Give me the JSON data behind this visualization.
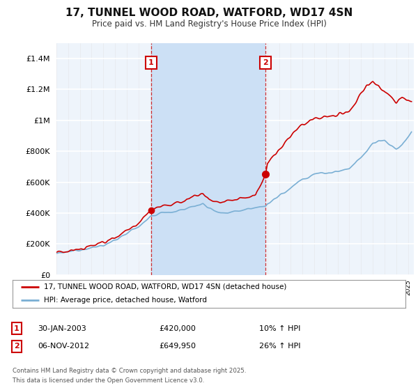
{
  "title": "17, TUNNEL WOOD ROAD, WATFORD, WD17 4SN",
  "subtitle": "Price paid vs. HM Land Registry's House Price Index (HPI)",
  "legend_line1": "17, TUNNEL WOOD ROAD, WATFORD, WD17 4SN (detached house)",
  "legend_line2": "HPI: Average price, detached house, Watford",
  "footnote_line1": "Contains HM Land Registry data © Crown copyright and database right 2025.",
  "footnote_line2": "This data is licensed under the Open Government Licence v3.0.",
  "annotation1_date": "30-JAN-2003",
  "annotation1_price": "£420,000",
  "annotation1_hpi": "10% ↑ HPI",
  "annotation2_date": "06-NOV-2012",
  "annotation2_price": "£649,950",
  "annotation2_hpi": "26% ↑ HPI",
  "marker1_year": 2003.08,
  "marker1_value": 420000,
  "marker2_year": 2012.85,
  "marker2_value": 649950,
  "red_color": "#cc0000",
  "blue_color": "#7aafd4",
  "bg_plot_color": "#eef4fb",
  "highlight_color": "#cce0f5",
  "grid_color": "#dddddd",
  "ylim_min": 0,
  "ylim_max": 1500000,
  "xmin": 1995,
  "xmax": 2025.5,
  "yticks": [
    0,
    200000,
    400000,
    600000,
    800000,
    1000000,
    1200000,
    1400000
  ]
}
